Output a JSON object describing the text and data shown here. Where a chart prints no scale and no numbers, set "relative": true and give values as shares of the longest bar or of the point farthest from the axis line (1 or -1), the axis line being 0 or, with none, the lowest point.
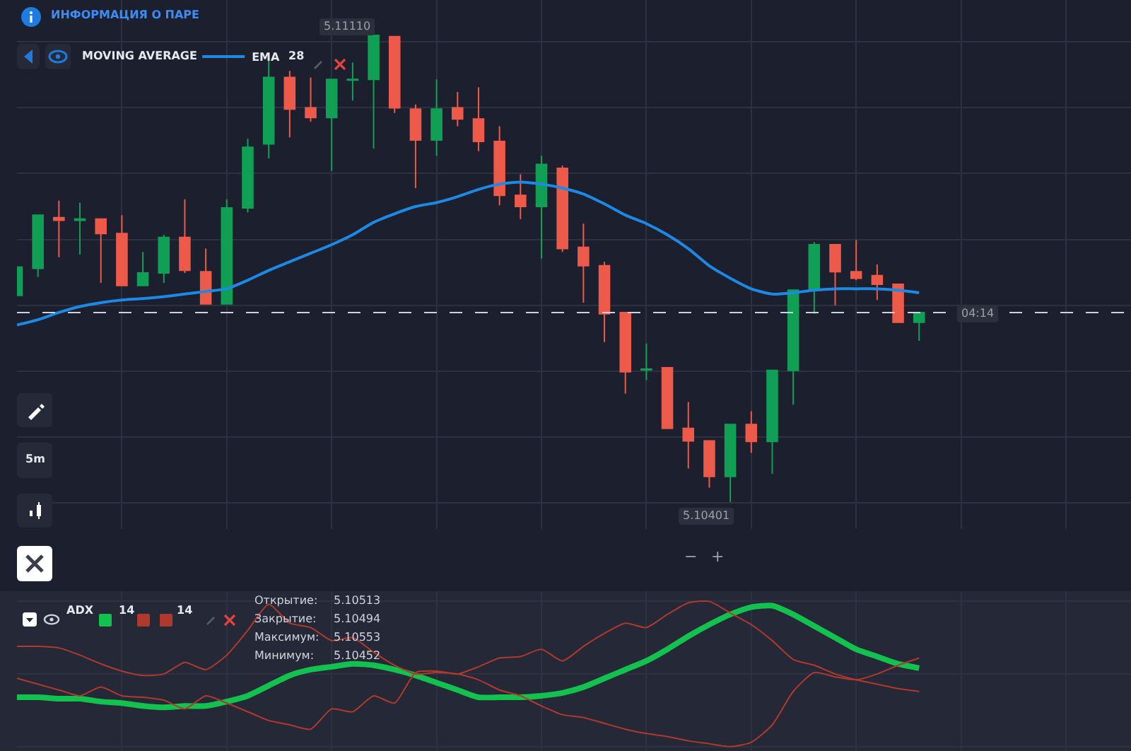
{
  "chart_data": [
    {
      "type": "candlestick",
      "categories": [
        null,
        null,
        null,
        null,
        null,
        null,
        null,
        null,
        null,
        null,
        null,
        null,
        null,
        null,
        null,
        null,
        null,
        null,
        null,
        null,
        null,
        null,
        null,
        null,
        null,
        null,
        null,
        null,
        null,
        null,
        null,
        null,
        null,
        null,
        null,
        null,
        null,
        null,
        null,
        null,
        null,
        null,
        null,
        null
      ],
      "ohlc": [
        [
          5.10715,
          5.10758,
          5.10715,
          5.10758
        ],
        [
          5.10756,
          5.10837,
          5.10743,
          5.10837
        ],
        [
          5.10833,
          5.10859,
          5.10773,
          5.10829
        ],
        [
          5.10829,
          5.10856,
          5.10777,
          5.10831
        ],
        [
          5.10831,
          5.10831,
          5.10734,
          5.10809
        ],
        [
          5.10809,
          5.10837,
          5.1073,
          5.1073
        ],
        [
          5.1073,
          5.10781,
          5.1073,
          5.10749
        ],
        [
          5.10749,
          5.10807,
          5.10734,
          5.10803
        ],
        [
          5.10803,
          5.10861,
          5.10749,
          5.10753
        ],
        [
          5.10751,
          5.10786,
          5.10702,
          5.10702
        ],
        [
          5.10702,
          5.10861,
          5.10702,
          5.10848
        ],
        [
          5.10848,
          5.10953,
          5.10841,
          5.1094
        ],
        [
          5.10945,
          5.11078,
          5.10923,
          5.11046
        ],
        [
          5.11046,
          5.11056,
          5.10955,
          5.10998
        ],
        [
          5.11,
          5.11046,
          5.10979,
          5.10985
        ],
        [
          5.10985,
          5.11043,
          5.10904,
          5.11043
        ],
        [
          5.11042,
          5.11069,
          5.11011,
          5.11043
        ],
        [
          5.11043,
          5.1111,
          5.10938,
          5.1111
        ],
        [
          5.11108,
          5.11108,
          5.10992,
          5.11
        ],
        [
          5.10998,
          5.11005,
          5.10878,
          5.10951
        ],
        [
          5.10951,
          5.11043,
          5.10927,
          5.10998
        ],
        [
          5.11,
          5.11024,
          5.10972,
          5.10983
        ],
        [
          5.10983,
          5.11031,
          5.10934,
          5.10949
        ],
        [
          5.10949,
          5.10972,
          5.10852,
          5.10867
        ],
        [
          5.10867,
          5.10899,
          5.10831,
          5.1085
        ],
        [
          5.1085,
          5.10927,
          5.10771,
          5.10914
        ],
        [
          5.10908,
          5.10912,
          5.10781,
          5.10786
        ],
        [
          5.10788,
          5.10824,
          5.10704,
          5.1076
        ],
        [
          5.1076,
          5.10766,
          5.10644,
          5.10687
        ],
        [
          5.10689,
          5.10689,
          5.10566,
          5.10599
        ],
        [
          5.10602,
          5.10642,
          5.10586,
          5.10603
        ],
        [
          5.10605,
          5.10605,
          5.10513,
          5.10513
        ],
        [
          5.10513,
          5.10553,
          5.10452,
          5.10494
        ],
        [
          5.10494,
          5.10494,
          5.10423,
          5.1044
        ],
        [
          5.1044,
          5.10519,
          5.10401,
          5.10519
        ],
        [
          5.10519,
          5.10539,
          5.10476,
          5.10493
        ],
        [
          5.10493,
          5.10601,
          5.10444,
          5.10601
        ],
        [
          5.10601,
          5.10723,
          5.10549,
          5.10723
        ],
        [
          5.10723,
          5.10796,
          5.10687,
          5.10792
        ],
        [
          5.10792,
          5.10792,
          5.107,
          5.10751
        ],
        [
          5.10751,
          5.10799,
          5.10738,
          5.10741
        ],
        [
          5.10745,
          5.10762,
          5.10708,
          5.10732
        ],
        [
          5.10732,
          5.10732,
          5.10674,
          5.10674
        ],
        [
          5.10674,
          5.10689,
          5.10646,
          5.10689
        ]
      ],
      "colors": [
        "#10a055",
        "#10a055",
        "#ee5a4a",
        "#10a055",
        "#ee5a4a",
        "#ee5a4a",
        "#10a055",
        "#10a055",
        "#ee5a4a",
        "#ee5a4a",
        "#10a055",
        "#10a055",
        "#10a055",
        "#ee5a4a",
        "#ee5a4a",
        "#10a055",
        "#10a055",
        "#10a055",
        "#ee5a4a",
        "#ee5a4a",
        "#10a055",
        "#ee5a4a",
        "#ee5a4a",
        "#ee5a4a",
        "#ee5a4a",
        "#10a055",
        "#ee5a4a",
        "#ee5a4a",
        "#ee5a4a",
        "#ee5a4a",
        "#10a055",
        "#ee5a4a",
        "#ee5a4a",
        "#ee5a4a",
        "#10a055",
        "#ee5a4a",
        "#10a055",
        "#10a055",
        "#10a055",
        "#ee5a4a",
        "#ee5a4a",
        "#ee5a4a",
        "#ee5a4a",
        "#10a055"
      ],
      "series": [
        {
          "type": "line",
          "name": "EMA",
          "color": "#1e88e5",
          "values": [
            5.1067,
            5.10678,
            5.10689,
            5.10698,
            5.10704,
            5.10708,
            5.1071,
            5.10713,
            5.10717,
            5.10721,
            5.10725,
            5.10738,
            5.10753,
            5.10766,
            5.10779,
            5.10792,
            5.10807,
            5.10826,
            5.10839,
            5.1085,
            5.10856,
            5.10865,
            5.10876,
            5.10884,
            5.10887,
            5.10884,
            5.10878,
            5.10869,
            5.10854,
            5.10837,
            5.10824,
            5.10807,
            5.10786,
            5.1076,
            5.10741,
            5.10725,
            5.10717,
            5.10719,
            5.10723,
            5.10725,
            5.10725,
            5.10725,
            5.10723,
            5.10719
          ]
        }
      ],
      "annotations": [
        "ИНФОРМАЦИЯ О ПАРЕ",
        "MOVING AVERAGE",
        "28",
        "5m",
        "−",
        "+",
        "5.11110",
        "5.10401",
        "04:14"
      ],
      "ref_lines": [
        {
          "axis": "y",
          "value": 5.10689,
          "color": "#cfd3dc",
          "line_style": "dashed"
        }
      ],
      "grid": true,
      "legend": "top left",
      "tick_labels": false
    },
    {
      "type": "line",
      "relative": true,
      "categories": [
        null,
        null,
        null,
        null,
        null,
        null,
        null,
        null,
        null,
        null,
        null,
        null,
        null,
        null,
        null,
        null,
        null,
        null,
        null,
        null,
        null,
        null,
        null,
        null,
        null,
        null,
        null,
        null,
        null,
        null,
        null,
        null,
        null,
        null,
        null,
        null,
        null,
        null,
        null,
        null,
        null,
        null,
        null,
        null
      ],
      "series": [
        {
          "color": "#12c14e",
          "values": [
            0.34,
            0.34,
            0.33,
            0.33,
            0.31,
            0.3,
            0.28,
            0.27,
            0.28,
            0.28,
            0.31,
            0.35,
            0.42,
            0.49,
            0.53,
            0.55,
            0.57,
            0.56,
            0.53,
            0.49,
            0.44,
            0.39,
            0.34,
            0.34,
            0.34,
            0.35,
            0.37,
            0.41,
            0.47,
            0.53,
            0.59,
            0.67,
            0.76,
            0.84,
            0.91,
            0.96,
            0.97,
            0.91,
            0.83,
            0.75,
            0.67,
            0.62,
            0.57,
            0.54
          ]
        },
        {
          "color": "#b0392e",
          "values": [
            0.69,
            0.69,
            0.68,
            0.63,
            0.57,
            0.52,
            0.49,
            0.5,
            0.58,
            0.53,
            0.63,
            0.8,
            0.98,
            0.85,
            0.82,
            0.73,
            0.75,
            0.65,
            0.56,
            0.5,
            0.51,
            0.5,
            0.46,
            0.39,
            0.35,
            0.28,
            0.22,
            0.2,
            0.16,
            0.12,
            0.09,
            0.07,
            0.04,
            0.02,
            0,
            0.03,
            0.15,
            0.38,
            0.51,
            0.48,
            0.46,
            0.5,
            0.56,
            0.61
          ]
        },
        {
          "color": "#b0392e",
          "values": [
            0.47,
            0.43,
            0.39,
            0.35,
            0.41,
            0.35,
            0.34,
            0.32,
            0.26,
            0.35,
            0.3,
            0.24,
            0.18,
            0.15,
            0.12,
            0.26,
            0.24,
            0.35,
            0.3,
            0.51,
            0.52,
            0.5,
            0.55,
            0.61,
            0.62,
            0.67,
            0.59,
            0.69,
            0.78,
            0.85,
            0.82,
            0.91,
            0.99,
            1,
            0.92,
            0.84,
            0.73,
            0.6,
            0.56,
            0.5,
            0.46,
            0.43,
            0.4,
            0.38
          ]
        }
      ],
      "annotations": [
        "ADX",
        "14",
        "14",
        "Открытие:",
        "5.10513",
        "Закрытие:",
        "5.10494",
        "Максимум:",
        "5.10553",
        "Минимум:",
        "5.10452"
      ],
      "grid": true,
      "tick_labels": false
    }
  ]
}
